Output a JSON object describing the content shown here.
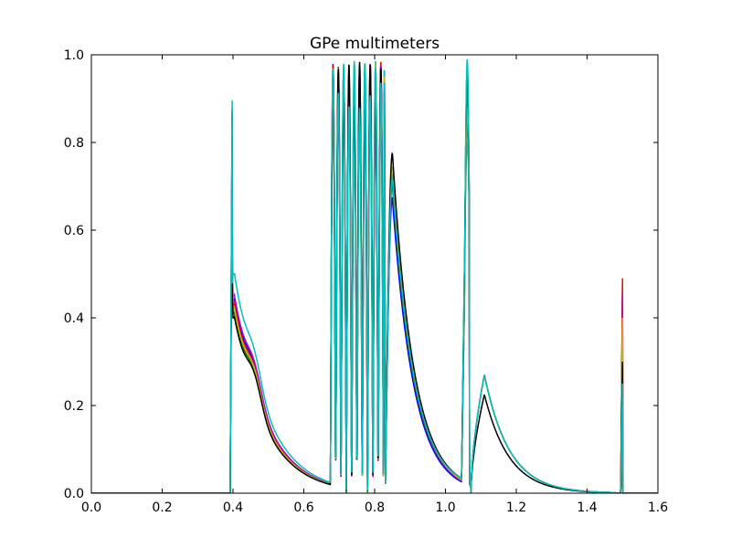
{
  "chart_data": {
    "type": "line",
    "title": "GPe multimeters",
    "xlabel": "",
    "ylabel": "",
    "xlim": [
      0.0,
      1.6
    ],
    "ylim": [
      0.0,
      1.0
    ],
    "x_ticks": [
      "0.0",
      "0.2",
      "0.4",
      "0.6",
      "0.8",
      "1.0",
      "1.2",
      "1.4",
      "1.6"
    ],
    "y_ticks": [
      "0.0",
      "0.2",
      "0.4",
      "0.6",
      "0.8",
      "1.0"
    ],
    "grid": false,
    "legend": "none",
    "colors": [
      "#0000ff",
      "#008000",
      "#ff0000",
      "#00bfbf",
      "#bf00bf",
      "#bfbf00",
      "#000000",
      "#00bfbf"
    ],
    "burst_x": [
      0.675,
      0.69,
      0.705,
      0.72,
      0.735,
      0.75,
      0.765,
      0.78,
      0.795,
      0.81,
      0.825
    ],
    "series": [
      {
        "color": "#0000ff",
        "spike1": 0.93,
        "peak1": 0.44,
        "peak2": 0.675,
        "spike3": 0.85,
        "peak3": 0.27,
        "spike4": 0.47
      },
      {
        "color": "#008000",
        "spike1": 0.9,
        "peak1": 0.41,
        "peak2": 0.705,
        "spike3": 0.93,
        "peak3": 0.27,
        "spike4": 0.46
      },
      {
        "color": "#ff0000",
        "spike1": 0.94,
        "peak1": 0.43,
        "peak2": 0.715,
        "spike3": 0.85,
        "peak3": 0.27,
        "spike4": 0.49
      },
      {
        "color": "#00bfbf",
        "spike1": 0.88,
        "peak1": 0.42,
        "peak2": 0.725,
        "spike3": 0.8,
        "peak3": 0.27,
        "spike4": 0.25
      },
      {
        "color": "#bf00bf",
        "spike1": 0.93,
        "peak1": 0.45,
        "peak2": 0.735,
        "spike3": 0.9,
        "peak3": 0.27,
        "spike4": 0.45
      },
      {
        "color": "#bfbf00",
        "spike1": 0.91,
        "peak1": 0.42,
        "peak2": 0.745,
        "spike3": 0.88,
        "peak3": 0.27,
        "spike4": 0.4
      },
      {
        "color": "#000000",
        "spike1": 0.87,
        "peak1": 0.4,
        "peak2": 0.775,
        "spike3": 0.97,
        "peak3": 0.225,
        "spike4": 0.3
      },
      {
        "color": "#00bfbf",
        "spike1": 0.96,
        "peak1": 0.5,
        "peak2": 0.72,
        "spike3": 0.99,
        "peak3": 0.27,
        "spike4": 0.25
      }
    ]
  }
}
